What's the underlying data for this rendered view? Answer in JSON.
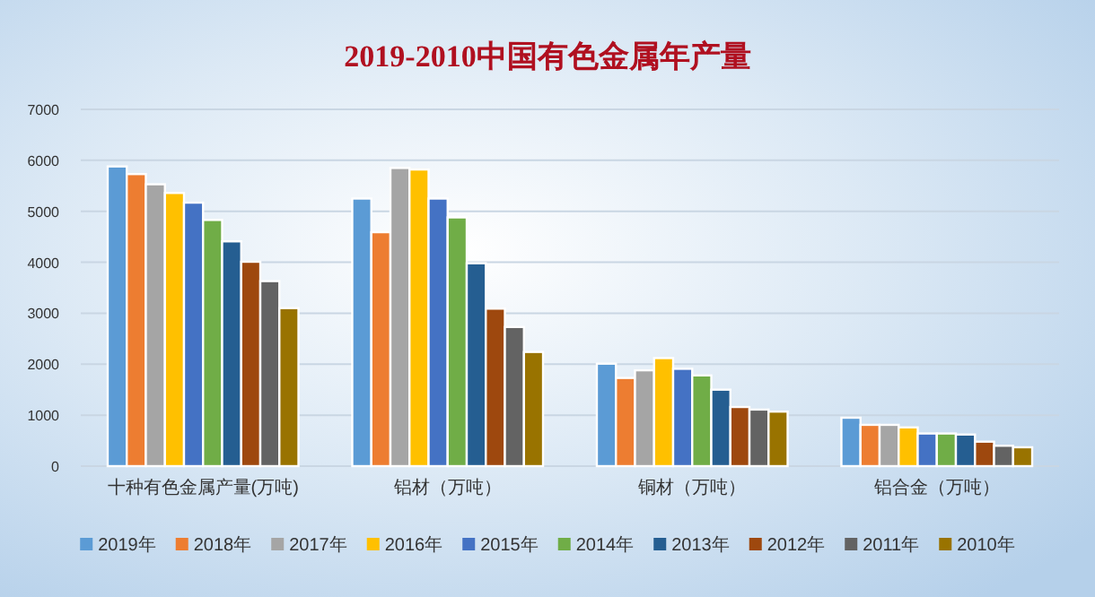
{
  "chart_data": {
    "type": "bar",
    "title": "2019-2010中国有色金属年产量",
    "categories": [
      "十种有色金属产量(万吨)",
      "铝材（万吨）",
      "铜材（万吨）",
      "铝合金（万吨）"
    ],
    "series": [
      {
        "name": "2019年",
        "color": "#5b9bd5",
        "values": [
          5880,
          5250,
          2010,
          950
        ]
      },
      {
        "name": "2018年",
        "color": "#ed7d31",
        "values": [
          5730,
          4590,
          1730,
          810
        ]
      },
      {
        "name": "2017年",
        "color": "#a5a5a5",
        "values": [
          5530,
          5850,
          1880,
          810
        ]
      },
      {
        "name": "2016年",
        "color": "#ffc000",
        "values": [
          5360,
          5820,
          2120,
          760
        ]
      },
      {
        "name": "2015年",
        "color": "#4472c4",
        "values": [
          5170,
          5250,
          1910,
          640
        ]
      },
      {
        "name": "2014年",
        "color": "#70ad47",
        "values": [
          4830,
          4880,
          1780,
          640
        ]
      },
      {
        "name": "2013年",
        "color": "#255e91",
        "values": [
          4410,
          3980,
          1500,
          620
        ]
      },
      {
        "name": "2012年",
        "color": "#9e480e",
        "values": [
          4010,
          3090,
          1160,
          480
        ]
      },
      {
        "name": "2011年",
        "color": "#636363",
        "values": [
          3630,
          2730,
          1110,
          400
        ]
      },
      {
        "name": "2010年",
        "color": "#997300",
        "values": [
          3100,
          2240,
          1070,
          370
        ]
      }
    ],
    "ylim": [
      0,
      7000
    ],
    "yticks": [
      0,
      1000,
      2000,
      3000,
      4000,
      5000,
      6000,
      7000
    ],
    "grid": "y",
    "legend": "bottom"
  }
}
